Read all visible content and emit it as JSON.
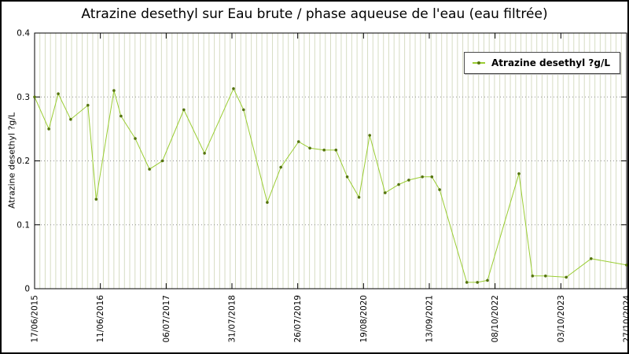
{
  "chart_data": {
    "type": "line",
    "title": "Atrazine desethyl sur Eau brute / phase aqueuse de l'eau (eau filtrée)",
    "ylabel": "Atrazine desethyl ?g/L",
    "xlabel": "",
    "legend_label": "Atrazine desethyl ?g/L",
    "legend_position": "top-right",
    "ylim": [
      0,
      0.4
    ],
    "ytick_labels": [
      "0",
      "0.1",
      "0.2",
      "0.3",
      "0.4"
    ],
    "ytick_values": [
      0,
      0.1,
      0.2,
      0.3,
      0.4
    ],
    "xtick_labels": [
      "17/06/2015",
      "11/06/2016",
      "06/07/2017",
      "31/07/2018",
      "26/07/2019",
      "19/08/2020",
      "13/09/2021",
      "08/10/2022",
      "03/10/2023",
      "27/10/2024"
    ],
    "grid": {
      "horizontal_dotted": true,
      "vertical_minor_count": 112
    },
    "colors": {
      "line": "#9acd32",
      "marker": "#55740e",
      "minor_grid": "#d6dcc3",
      "grid_dots": "#909090",
      "axis": "#000000"
    },
    "points": [
      [
        0.0,
        0.3
      ],
      [
        0.024,
        0.25
      ],
      [
        0.04,
        0.305
      ],
      [
        0.061,
        0.265
      ],
      [
        0.09,
        0.287
      ],
      [
        0.104,
        0.14
      ],
      [
        0.134,
        0.31
      ],
      [
        0.146,
        0.27
      ],
      [
        0.17,
        0.235
      ],
      [
        0.194,
        0.187
      ],
      [
        0.216,
        0.2
      ],
      [
        0.252,
        0.28
      ],
      [
        0.287,
        0.212
      ],
      [
        0.336,
        0.313
      ],
      [
        0.353,
        0.28
      ],
      [
        0.393,
        0.135
      ],
      [
        0.416,
        0.19
      ],
      [
        0.446,
        0.23
      ],
      [
        0.465,
        0.22
      ],
      [
        0.489,
        0.217
      ],
      [
        0.509,
        0.217
      ],
      [
        0.528,
        0.175
      ],
      [
        0.548,
        0.143
      ],
      [
        0.566,
        0.24
      ],
      [
        0.592,
        0.15
      ],
      [
        0.615,
        0.163
      ],
      [
        0.632,
        0.17
      ],
      [
        0.655,
        0.175
      ],
      [
        0.671,
        0.175
      ],
      [
        0.684,
        0.155
      ],
      [
        0.73,
        0.01
      ],
      [
        0.748,
        0.01
      ],
      [
        0.765,
        0.013
      ],
      [
        0.818,
        0.18
      ],
      [
        0.841,
        0.02
      ],
      [
        0.863,
        0.02
      ],
      [
        0.898,
        0.018
      ],
      [
        0.94,
        0.047
      ],
      [
        1.0,
        0.037
      ]
    ]
  }
}
